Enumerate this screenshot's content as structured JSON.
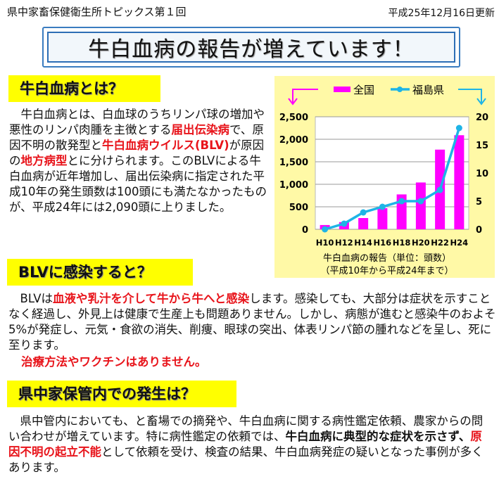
{
  "header": {
    "series_title": "県中家畜保健衛生所トピックス第１回",
    "updated": "平成25年12月16日更新",
    "main_title": "牛白血病の報告が増えています！"
  },
  "sections": [
    {
      "heading": "牛白血病とは？",
      "paragraph": [
        {
          "t": "　牛白血病とは、白血球のうちリンパ球の増加や悪性のリンパ肉腫を主徴とする",
          "s": ""
        },
        {
          "t": "届出伝染病",
          "s": "red"
        },
        {
          "t": "で、原因不明の散発型と",
          "s": ""
        },
        {
          "t": "牛白血病ウイルス(BLV)",
          "s": "red"
        },
        {
          "t": "が原因の",
          "s": ""
        },
        {
          "t": "地方病型",
          "s": "red"
        },
        {
          "t": "とに分けられます。このBLVによる牛白血病が近年増加し、届出伝染病に指定された平成10年の発生頭数は100頭にも満たなかったものが、平成24年には2,090頭に上りました。",
          "s": ""
        }
      ]
    },
    {
      "heading": "BLVに感染すると？",
      "paragraph": [
        {
          "t": "　BLVは",
          "s": ""
        },
        {
          "t": "血液や乳汁を介して牛から牛へと感染",
          "s": "red"
        },
        {
          "t": "します。感染しても、大部分は症状を示すことなく経過し、外見上は健康で生産上も問題ありません。しかし、病態が進むと感染牛のおよそ5%が発症し、元気・食欲の消失、削痩、眼球の突出、体表リンパ節の腫れなどを呈し、死に至ります。",
          "s": ""
        }
      ],
      "note": "治療方法やワクチンはありません。"
    },
    {
      "heading": "県中家保管内での発生は？",
      "paragraph": [
        {
          "t": "　県中管内においても、と畜場での摘発や、牛白血病に関する病性鑑定依頼、農家からの問い合わせが増えています。特に病性鑑定の依頼では、",
          "s": ""
        },
        {
          "t": "牛白血病に典型的な症状を示さず、",
          "s": "bold"
        },
        {
          "t": "原因不明の起立不能",
          "s": "red"
        },
        {
          "t": "として依頼を受け、検査の結果、牛白血病発症の疑いとなった事例が多くあります。",
          "s": ""
        }
      ]
    }
  ],
  "chart_data": {
    "type": "bar+line",
    "categories": [
      "H10",
      "H12",
      "H14",
      "H16",
      "H18",
      "H20",
      "H22",
      "H24"
    ],
    "series": [
      {
        "name": "全国",
        "type": "bar",
        "axis": "left",
        "color": "#ff00ff",
        "values": [
          95,
          160,
          250,
          470,
          775,
          1040,
          1770,
          2090
        ]
      },
      {
        "name": "福島県",
        "type": "line",
        "axis": "right",
        "color": "#1eb4e6",
        "values": [
          0,
          1,
          3,
          4,
          5,
          5,
          7,
          18
        ]
      }
    ],
    "ylim_left": [
      0,
      2500
    ],
    "ylim_right": [
      0,
      20
    ],
    "yticks_left": [
      "0",
      "500",
      "1,000",
      "1,500",
      "2,000",
      "2,500"
    ],
    "yticks_right": [
      "0",
      "5",
      "10",
      "15",
      "20"
    ],
    "grid": true,
    "legend": "top",
    "caption1": "牛白血病の報告（単位：頭数）",
    "caption2": "（平成10年から平成24年まで）",
    "panel_color": "#fff9a6"
  }
}
